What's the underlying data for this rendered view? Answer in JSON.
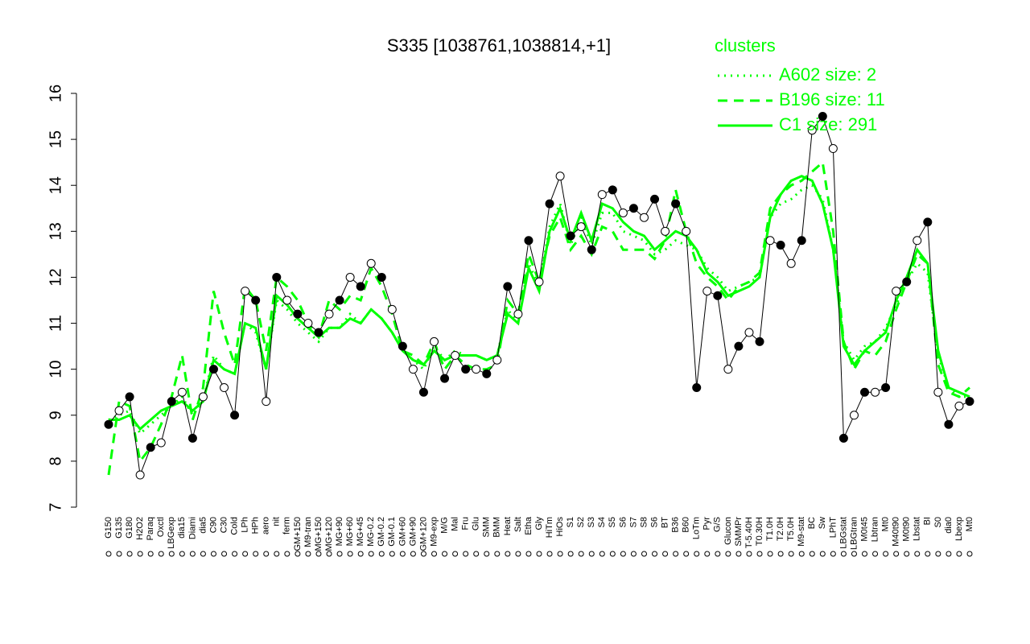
{
  "chart_data": {
    "type": "line",
    "title": "S335 [1038761,1038814,+1]",
    "legend_title": "clusters",
    "legend_position": "top-right",
    "ylim": [
      7,
      16
    ],
    "yticks": [
      7,
      8,
      9,
      10,
      11,
      12,
      13,
      14,
      15,
      16
    ],
    "categories": [
      "G150",
      "G135",
      "G180",
      "H2O2",
      "Paraq",
      "Oxctl",
      "LBGexp",
      "dia15",
      "Diami",
      "dia5",
      "C90",
      "C30",
      "Cold",
      "LPh",
      "HPh",
      "aero",
      "nit",
      "ferm",
      "GM+150",
      "M9-tran",
      "MG+150",
      "MG+120",
      "MG+90",
      "MG+60",
      "MG+45",
      "MG-0.2",
      "GM-0.2",
      "GM-0.1",
      "GM+60",
      "GM+90",
      "GM+120",
      "M9-exp",
      "M/G",
      "Mal",
      "Fru",
      "Glu",
      "SMM",
      "BMM",
      "Heat",
      "Salt",
      "Etha",
      "Gly",
      "HiTm",
      "HiOs",
      "S1",
      "S2",
      "S3",
      "S4",
      "S5",
      "S6",
      "S7",
      "S8",
      "S6",
      "BT",
      "B36",
      "B60",
      "LoTm",
      "Pyr",
      "G/S",
      "Glucon",
      "SMMPr",
      "T-5.40H",
      "T0.30H",
      "T1.0H",
      "T2.0H",
      "T5.0H",
      "M9-stat",
      "BC",
      "Sw",
      "LPhT",
      "LBGstat",
      "LBGtran",
      "M0t45",
      "Lbtran",
      "Mt0",
      "M40t90",
      "M0t90",
      "Lbstat",
      "BI",
      "S0",
      "dia0",
      "Lbexp",
      "Mt0"
    ],
    "values": [
      8.8,
      9.1,
      9.4,
      7.7,
      8.3,
      8.4,
      9.3,
      9.5,
      8.5,
      9.4,
      10.0,
      9.6,
      9.0,
      11.7,
      11.5,
      9.3,
      12.0,
      11.5,
      11.2,
      11.0,
      10.8,
      11.2,
      11.5,
      12.0,
      11.8,
      12.3,
      12.0,
      11.3,
      10.5,
      10.0,
      9.5,
      10.6,
      9.8,
      10.3,
      10.0,
      10.0,
      9.9,
      10.2,
      11.8,
      11.2,
      12.8,
      11.9,
      13.6,
      14.2,
      12.9,
      13.1,
      12.6,
      13.8,
      13.9,
      13.4,
      13.5,
      13.3,
      13.7,
      13.0,
      13.6,
      13.0,
      9.6,
      11.7,
      11.6,
      10.0,
      10.5,
      10.8,
      10.6,
      12.8,
      12.7,
      12.3,
      12.8,
      15.2,
      15.5,
      14.8,
      8.5,
      9.0,
      9.5,
      9.5,
      9.6,
      11.7,
      11.9,
      12.8,
      13.2,
      9.5,
      8.8,
      9.2,
      9.3
    ],
    "series": [
      {
        "name": "A602 size: 2",
        "color": "#00ff00",
        "dash": "dotted",
        "values": [
          8.9,
          9.0,
          9.1,
          8.6,
          8.8,
          9.0,
          9.2,
          9.4,
          9.0,
          9.3,
          10.3,
          10.0,
          9.9,
          11.0,
          10.8,
          10.0,
          11.5,
          11.3,
          11.0,
          10.8,
          10.6,
          10.9,
          10.9,
          11.2,
          11.0,
          11.3,
          11.1,
          10.8,
          10.4,
          10.2,
          10.0,
          10.5,
          10.2,
          10.4,
          10.3,
          10.3,
          10.2,
          10.3,
          11.3,
          11.0,
          12.3,
          11.8,
          13.1,
          13.6,
          12.7,
          13.3,
          12.7,
          13.4,
          13.4,
          13.0,
          12.9,
          12.8,
          12.5,
          12.6,
          12.8,
          12.7,
          12.6,
          12.2,
          12.0,
          11.7,
          11.8,
          11.9,
          12.0,
          13.3,
          13.6,
          13.7,
          13.9,
          14.0,
          13.7,
          12.6,
          10.6,
          10.2,
          10.5,
          10.6,
          10.9,
          11.4,
          11.9,
          12.3,
          12.1,
          10.3,
          9.6,
          9.4,
          9.4
        ]
      },
      {
        "name": "B196 size: 11",
        "color": "#00ff00",
        "dash": "dashed",
        "values": [
          7.7,
          9.3,
          9.2,
          8.0,
          8.3,
          8.8,
          9.4,
          10.3,
          8.9,
          9.6,
          11.7,
          10.8,
          10.1,
          11.8,
          11.5,
          10.4,
          12.0,
          11.8,
          11.5,
          11.0,
          10.7,
          11.5,
          11.3,
          11.6,
          11.5,
          12.2,
          11.8,
          11.2,
          10.4,
          10.3,
          10.1,
          10.6,
          10.0,
          10.3,
          10.1,
          10.0,
          10.0,
          10.1,
          11.5,
          11.2,
          12.5,
          11.9,
          12.9,
          13.3,
          12.6,
          12.9,
          12.5,
          13.1,
          13.0,
          12.6,
          12.6,
          12.6,
          12.4,
          12.8,
          13.9,
          13.0,
          12.3,
          12.0,
          11.8,
          11.5,
          11.8,
          11.9,
          12.1,
          13.5,
          13.8,
          14.0,
          14.1,
          14.3,
          14.5,
          13.0,
          10.6,
          10.0,
          10.4,
          10.3,
          10.6,
          11.3,
          11.9,
          12.5,
          12.3,
          10.1,
          9.5,
          9.4,
          9.6
        ]
      },
      {
        "name": "C1 size: 291",
        "color": "#00ff00",
        "dash": "solid",
        "values": [
          8.9,
          8.9,
          9.0,
          8.7,
          8.9,
          9.1,
          9.2,
          9.3,
          9.1,
          9.3,
          10.2,
          10.0,
          9.9,
          11.0,
          10.9,
          10.0,
          11.6,
          11.4,
          11.1,
          10.9,
          10.7,
          10.9,
          10.9,
          11.1,
          11.0,
          11.3,
          11.1,
          10.8,
          10.4,
          10.2,
          10.1,
          10.4,
          10.2,
          10.3,
          10.3,
          10.3,
          10.2,
          10.3,
          11.2,
          11.0,
          12.2,
          11.7,
          13.0,
          13.5,
          12.8,
          13.4,
          12.8,
          13.6,
          13.5,
          13.2,
          13.0,
          12.9,
          12.6,
          12.8,
          13.0,
          12.9,
          12.6,
          12.1,
          11.9,
          11.6,
          11.7,
          11.8,
          12.0,
          13.3,
          13.8,
          14.1,
          14.2,
          14.1,
          13.6,
          12.6,
          10.5,
          10.1,
          10.4,
          10.6,
          10.8,
          11.5,
          12.0,
          12.6,
          12.3,
          10.4,
          9.6,
          9.5,
          9.4
        ]
      }
    ]
  }
}
